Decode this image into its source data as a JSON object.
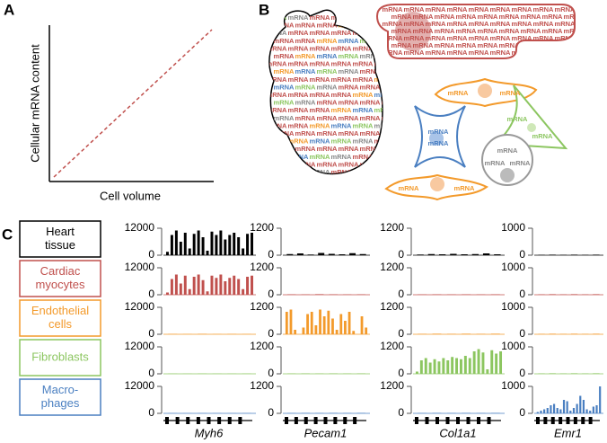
{
  "panel_a": {
    "label": "A",
    "x_label": "Cell volume",
    "y_label": "Cellular mRNA content"
  },
  "panel_b": {
    "label": "B",
    "word": "mRNA"
  },
  "panel_c": {
    "label": "C",
    "cell_types": [
      {
        "lines": [
          "Heart",
          "tissue"
        ],
        "color": "#000000"
      },
      {
        "lines": [
          "Cardiac",
          "myocytes"
        ],
        "color": "#c0504d"
      },
      {
        "lines": [
          "Endothelial",
          "cells"
        ],
        "color": "#f39a2b"
      },
      {
        "lines": [
          "Fibroblasts"
        ],
        "color": "#8cc660"
      },
      {
        "lines": [
          "Macro-",
          "phages"
        ],
        "color": "#4a7fc1"
      }
    ],
    "genes": [
      {
        "name": "Myh6",
        "ylim": [
          0,
          12000
        ],
        "yticks": [
          0,
          12000
        ],
        "tracks": [
          [
            1500,
            9000,
            11000,
            6000,
            10000,
            3000,
            9500,
            11000,
            8000,
            2000,
            10500,
            9000,
            11000,
            7000,
            9000,
            10000,
            8000,
            3000,
            9500,
            10000
          ],
          [
            1000,
            7000,
            9000,
            5000,
            8500,
            2500,
            8000,
            9000,
            6500,
            1500,
            8500,
            7500,
            9000,
            6000,
            7500,
            8500,
            7000,
            2500,
            8000,
            8500
          ],
          [
            150,
            100,
            200,
            100,
            150,
            100
          ],
          [
            100,
            80,
            120,
            100,
            90,
            110
          ],
          [
            80,
            60,
            100,
            80,
            70,
            90
          ]
        ]
      },
      {
        "name": "Pecam1",
        "ylim": [
          0,
          1200
        ],
        "yticks": [
          0,
          1200
        ],
        "tracks": [
          [
            50,
            80,
            30,
            100,
            60,
            40,
            90,
            50
          ],
          [
            20,
            15,
            25,
            20,
            15,
            20
          ],
          [
            1000,
            1100,
            200,
            0,
            300,
            900,
            1000,
            400,
            1100,
            800,
            1050,
            700,
            200,
            900,
            600,
            1000,
            150,
            0,
            800,
            300
          ],
          [
            15,
            20,
            15,
            20,
            15,
            20
          ],
          [
            15,
            20,
            15,
            20,
            15,
            20
          ]
        ]
      },
      {
        "name": "Col1a1",
        "ylim": [
          0,
          1200
        ],
        "yticks": [
          0,
          1200
        ],
        "tracks": [
          [
            30,
            50,
            40,
            60,
            40,
            50,
            80,
            40
          ],
          [
            15,
            20,
            15,
            20,
            15,
            20
          ],
          [
            20,
            25,
            20,
            25,
            20,
            25
          ],
          [
            100,
            600,
            700,
            500,
            650,
            550,
            700,
            600,
            750,
            700,
            650,
            800,
            700,
            1000,
            1100,
            950,
            200,
            1050,
            900,
            1000
          ],
          [
            15,
            20,
            15,
            20,
            15,
            20
          ]
        ]
      },
      {
        "name": "Emr1",
        "ylim": [
          0,
          1000
        ],
        "yticks": [
          0,
          1000
        ],
        "tracks": [
          [
            15,
            20,
            15,
            20,
            15,
            20
          ],
          [
            15,
            20,
            15,
            20,
            15,
            20
          ],
          [
            15,
            20,
            15,
            20,
            15,
            20
          ],
          [
            15,
            20,
            15,
            20,
            15,
            20
          ],
          [
            50,
            100,
            150,
            200,
            300,
            350,
            200,
            150,
            500,
            450,
            100,
            200,
            350,
            650,
            500,
            150,
            100,
            250,
            300,
            1000
          ]
        ]
      }
    ]
  }
}
